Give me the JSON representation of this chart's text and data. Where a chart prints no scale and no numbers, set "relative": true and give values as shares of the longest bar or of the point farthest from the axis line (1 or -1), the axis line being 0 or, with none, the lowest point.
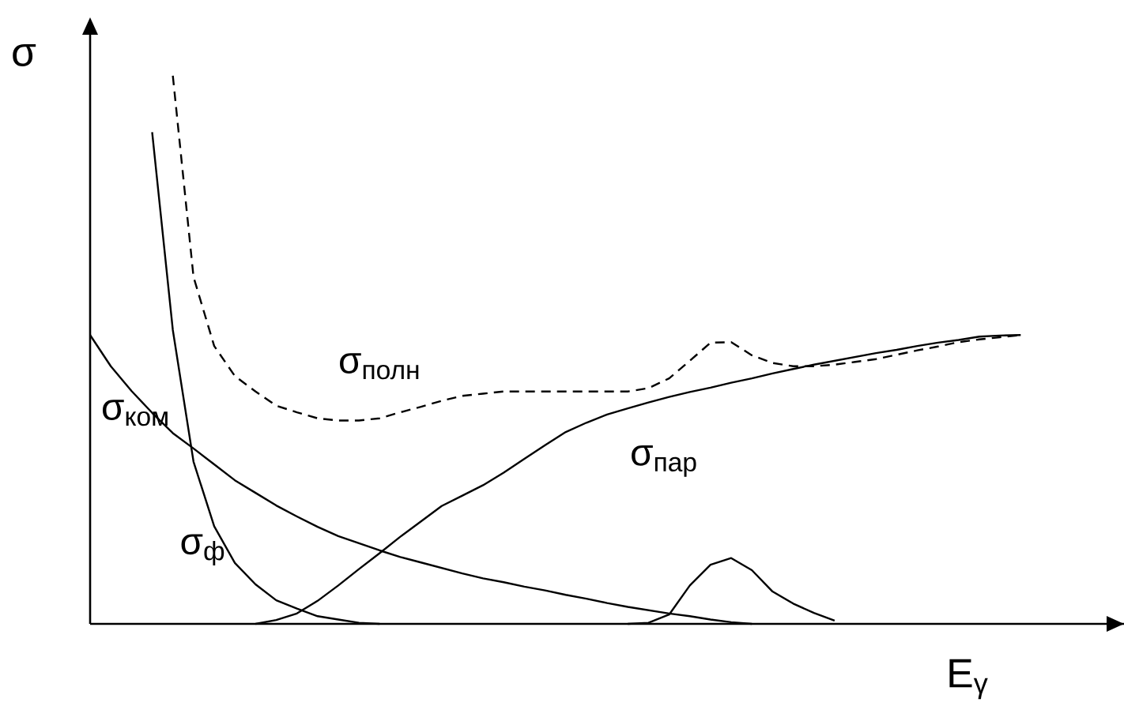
{
  "chart_data": {
    "type": "line",
    "relative": true,
    "xlabel": "E$_{γ}$",
    "ylabel": "σ",
    "tick_labels": false,
    "legend": false,
    "marker": "none",
    "categories": [
      null,
      null,
      null,
      null,
      null,
      null,
      null,
      null,
      null,
      null,
      null,
      null,
      null,
      null,
      null,
      null,
      null,
      null,
      null,
      null,
      null,
      null,
      null,
      null,
      null,
      null,
      null,
      null,
      null,
      null,
      null,
      null,
      null,
      null,
      null,
      null,
      null,
      null,
      null,
      null,
      null,
      null,
      null,
      null,
      null,
      null
    ],
    "series": [
      {
        "name": "σ$_{ф}$",
        "color": "#000000",
        "line_style": "solid",
        "values": [
          null,
          null,
          null,
          0.897,
          0.536,
          0.296,
          0.178,
          0.111,
          0.072,
          0.043,
          0.028,
          0.014,
          0.008,
          0.002,
          0,
          null,
          null,
          null,
          null,
          null,
          null,
          null,
          null,
          null,
          null,
          null,
          null,
          null,
          null,
          null,
          null,
          null,
          null,
          null,
          null,
          null,
          null,
          null,
          null,
          null,
          null,
          null,
          null,
          null,
          null,
          null
        ]
      },
      {
        "name": "σ$_{ком}$",
        "color": "#000000",
        "line_style": "solid",
        "values": [
          0.527,
          0.47,
          0.425,
          0.385,
          0.348,
          0.32,
          0.291,
          0.262,
          0.239,
          0.216,
          0.196,
          0.177,
          0.16,
          0.147,
          0.134,
          0.122,
          0.112,
          0.102,
          0.092,
          0.083,
          0.076,
          0.068,
          0.061,
          0.053,
          0.046,
          0.038,
          0.031,
          0.025,
          0.019,
          0.014,
          0.008,
          0.003,
          0,
          null,
          null,
          null,
          null,
          null,
          null,
          null,
          null,
          null,
          null,
          null,
          null,
          null
        ]
      },
      {
        "name": "σ$_{пар}$",
        "color": "#000000",
        "line_style": "solid",
        "values": [
          null,
          null,
          null,
          null,
          null,
          null,
          null,
          null,
          0,
          0.007,
          0.019,
          0.042,
          0.07,
          0.1,
          0.129,
          0.159,
          0.187,
          0.215,
          0.234,
          0.253,
          0.276,
          0.301,
          0.326,
          0.35,
          0.367,
          0.382,
          0.393,
          0.404,
          0.414,
          0.423,
          0.431,
          0.44,
          0.448,
          0.457,
          0.465,
          0.473,
          0.48,
          0.487,
          0.494,
          0.5,
          0.507,
          0.513,
          0.518,
          0.524,
          0.526,
          0.527
        ]
      },
      {
        "name": "σ$_{полн}$",
        "color": "#000000",
        "line_style": "dashed",
        "values": [
          null,
          null,
          null,
          null,
          1.0,
          0.633,
          0.507,
          0.452,
          0.424,
          0.398,
          0.386,
          0.375,
          0.371,
          0.371,
          0.375,
          0.386,
          0.396,
          0.407,
          0.416,
          0.42,
          0.424,
          0.424,
          0.424,
          0.424,
          0.424,
          0.424,
          0.424,
          0.43,
          0.448,
          0.48,
          0.513,
          0.514,
          0.49,
          0.476,
          0.47,
          0.47,
          0.473,
          0.478,
          0.483,
          0.491,
          0.499,
          0.506,
          0.514,
          0.519,
          0.523,
          0.527
        ]
      },
      {
        "color": "#000000",
        "line_style": "solid",
        "values": [
          null,
          null,
          null,
          null,
          null,
          null,
          null,
          null,
          null,
          null,
          null,
          null,
          null,
          null,
          null,
          null,
          null,
          null,
          null,
          null,
          null,
          null,
          null,
          null,
          null,
          null,
          0,
          0.002,
          0.017,
          0.07,
          0.108,
          0.12,
          0.098,
          0.059,
          0.037,
          0.02,
          0.006,
          null,
          null,
          null,
          null,
          null,
          null,
          null,
          null,
          null
        ]
      }
    ]
  }
}
